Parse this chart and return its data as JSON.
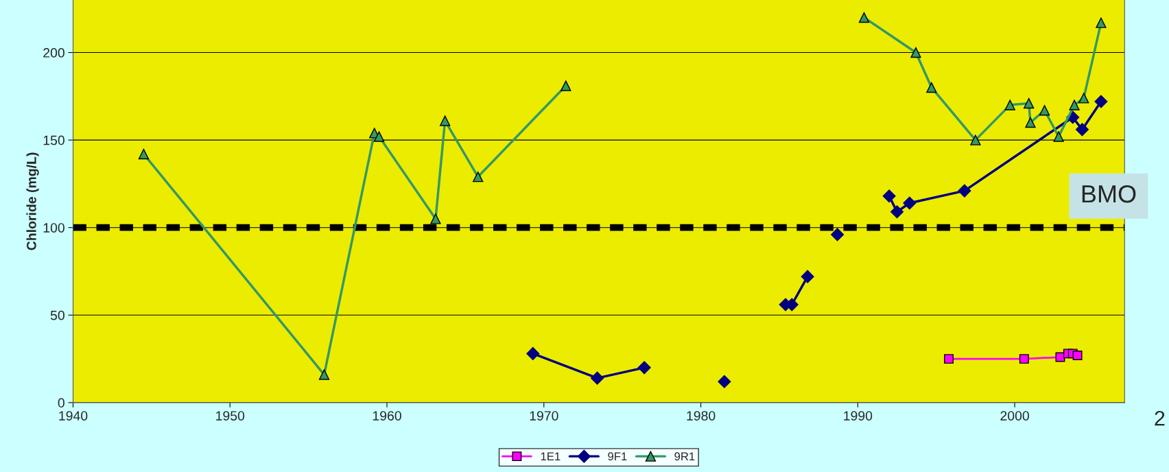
{
  "chart_data": {
    "type": "line",
    "ylabel": "Chloride (mg/L)",
    "xlim": [
      1940,
      2007
    ],
    "xticks": [
      1940,
      1950,
      1960,
      1970,
      1980,
      1990,
      2000
    ],
    "ylim": [
      0,
      230
    ],
    "yticks": [
      0,
      50,
      100,
      150,
      200
    ],
    "grid": "y",
    "legend": "bottom",
    "series": [
      {
        "name": "1E1",
        "color": "#ff00ff",
        "marker": "square",
        "x": [
          1995.8,
          2000.6,
          2002.9,
          2003.4,
          2003.7,
          2004.0
        ],
        "values": [
          25,
          25,
          26,
          28,
          28,
          27
        ]
      },
      {
        "name": "9F1",
        "color": "#000080",
        "marker": "diamond",
        "x": [
          1969.3,
          1973.4,
          1976.4,
          1978.9,
          1981.5,
          1983.4,
          1985.4,
          1985.8,
          1986.8,
          1987.7,
          1988.7,
          1990.3,
          1992.0,
          1992.5,
          1993.3,
          1996.8,
          2003.7,
          2004.3,
          2005.5
        ],
        "values": [
          28,
          14,
          20,
          null,
          12,
          null,
          56,
          56,
          72,
          null,
          96,
          null,
          118,
          109,
          114,
          121,
          163,
          156,
          172
        ]
      },
      {
        "name": "9R1",
        "color": "#339966",
        "marker": "triangle",
        "x": [
          1944.5,
          1956.0,
          1959.2,
          1959.5,
          1963.1,
          1963.7,
          1965.8,
          1971.4,
          1981.0,
          1990.4,
          1993.7,
          1994.7,
          1997.5,
          1999.7,
          2000.9,
          2001.0,
          2001.9,
          2002.8,
          2003.8,
          2004.4,
          2005.5
        ],
        "values": [
          142,
          16,
          154,
          152,
          105,
          161,
          129,
          181,
          null,
          220,
          200,
          180,
          150,
          170,
          171,
          160,
          167,
          152,
          170,
          174,
          217
        ]
      }
    ],
    "ref_lines": [
      {
        "axis": "y",
        "value": 100,
        "label": "BMO",
        "color": "#000000",
        "line_style": "dashed"
      }
    ],
    "annotations": [
      "2"
    ]
  }
}
